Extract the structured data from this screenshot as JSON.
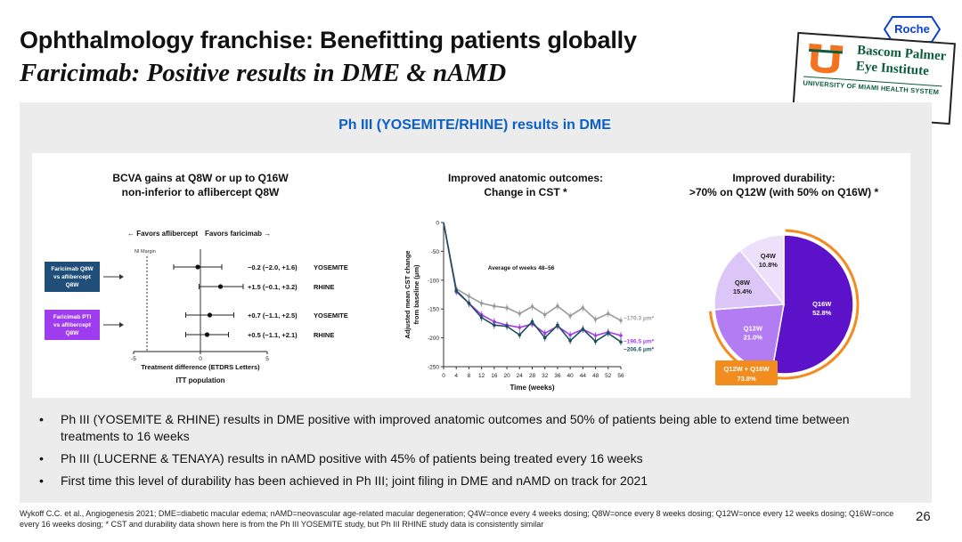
{
  "header": {
    "title": "Ophthalmology franchise: Benefitting patients globally",
    "subtitle": "Faricimab: Positive results in DME & nAMD"
  },
  "logos": {
    "roche": "Roche",
    "bascom_line1": "Bascom Palmer",
    "bascom_line2": "Eye Institute",
    "bascom_line3": "UNIVERSITY OF MIAMI HEALTH SYSTEM"
  },
  "panel": {
    "title": "Ph III (YOSEMITE/RHINE) results in DME"
  },
  "colors": {
    "navy": "#1f4e79",
    "purple": "#a03cf0",
    "dark_purple": "#5b12c8",
    "orange": "#f28c1e",
    "teal": "#1b4f5f",
    "blue": "#0b5fc7"
  },
  "chart_data": [
    {
      "type": "forest",
      "title_line1": "BCVA gains at Q8W or up to Q16W",
      "title_line2": "non-inferior to aflibercept Q8W",
      "direction_left": "Favors aflibercept",
      "direction_right": "Favors faricimab",
      "ni_margin_label": "NI Margin",
      "ni_margin": -4,
      "xlim": [
        -5,
        5
      ],
      "xticks": [
        -5,
        0,
        5
      ],
      "xlabel": "Treatment difference (ETDRS Letters)",
      "population": "ITT population",
      "groups": [
        {
          "label": "Faricimab Q8W vs aflibercept Q8W",
          "color": "#1f4e79"
        },
        {
          "label": "Faricimab PTI vs aflibercept Q8W",
          "color": "#a03cf0"
        }
      ],
      "rows": [
        {
          "est": -0.2,
          "lo": -2.0,
          "hi": 1.6,
          "text": "−0.2 (−2.0, +1.6)",
          "study": "YOSEMITE"
        },
        {
          "est": 1.5,
          "lo": -0.1,
          "hi": 3.2,
          "text": "+1.5 (−0.1, +3.2)",
          "study": "RHINE"
        },
        {
          "est": 0.7,
          "lo": -1.1,
          "hi": 2.5,
          "text": "+0.7 (−1.1, +2.5)",
          "study": "YOSEMITE"
        },
        {
          "est": 0.5,
          "lo": -1.1,
          "hi": 2.1,
          "text": "+0.5 (−1.1, +2.1)",
          "study": "RHINE"
        }
      ]
    },
    {
      "type": "line",
      "title_line1": "Improved anatomic outcomes:",
      "title_line2": "Change in CST *",
      "ylabel_line1": "Adjusted mean CST change",
      "ylabel_line2": "from baseline (μm)",
      "xlabel": "Time (weeks)",
      "annotation": "Average of weeks 48–56",
      "ylim": [
        -250,
        0
      ],
      "yticks": [
        0,
        -50,
        -100,
        -150,
        -200,
        -250
      ],
      "x": [
        0,
        4,
        8,
        12,
        16,
        20,
        24,
        28,
        32,
        36,
        40,
        44,
        48,
        52,
        56
      ],
      "series": [
        {
          "name": "aflibercept Q8W",
          "color": "#9a9a9a",
          "end_label": "−170.3 μm*",
          "values": [
            0,
            -115,
            -128,
            -140,
            -145,
            -148,
            -158,
            -146,
            -160,
            -145,
            -162,
            -148,
            -168,
            -158,
            -170
          ]
        },
        {
          "name": "faricimab PTI",
          "color": "#a03cf0",
          "end_label": "−196.5 μm*",
          "values": [
            0,
            -120,
            -140,
            -160,
            -172,
            -178,
            -182,
            -176,
            -192,
            -180,
            -195,
            -185,
            -196,
            -190,
            -196
          ]
        },
        {
          "name": "faricimab Q8W",
          "color": "#1b4f5f",
          "end_label": "−206.6 μm*",
          "values": [
            0,
            -118,
            -140,
            -165,
            -178,
            -180,
            -195,
            -172,
            -200,
            -178,
            -205,
            -185,
            -206,
            -192,
            -207
          ]
        }
      ]
    },
    {
      "type": "pie",
      "title_line1": "Improved durability:",
      "title_line2": ">70% on Q12W (with 50% on Q16W) *",
      "slices": [
        {
          "label": "Q16W",
          "value": 52.8,
          "value_text": "52.8%",
          "color": "#5b12c8"
        },
        {
          "label": "Q12W",
          "value": 21.0,
          "value_text": "21.0%",
          "color": "#b47cf2"
        },
        {
          "label": "Q8W",
          "value": 15.4,
          "value_text": "15.4%",
          "color": "#dcc6f8"
        },
        {
          "label": "Q4W",
          "value": 10.8,
          "value_text": "10.8%",
          "color": "#ece0fb"
        }
      ],
      "callout_line1": "Q12W + Q16W",
      "callout_line2": "73.8%",
      "callout_color": "#f28c1e"
    }
  ],
  "bullets": [
    "Ph III (YOSEMITE & RHINE) results in DME positive with improved anatomic outcomes and 50% of patients being able to extend time between treatments to 16 weeks",
    "Ph III (LUCERNE & TENAYA) results in nAMD positive with 45% of patients being treated every 16 weeks",
    "First time this level of durability has been achieved in Ph III; joint filing in DME and nAMD on track for 2021"
  ],
  "footer": "Wykoff C.C. et al., Angiogenesis 2021; DME=diabetic macular edema; nAMD=neovascular age-related macular degeneration; Q4W=once every 4 weeks dosing; Q8W=once every 8 weeks dosing; Q12W=once every 12 weeks dosing; Q16W=once every 16 weeks dosing; * CST and durability data shown here is from the Ph III YOSEMITE study, but Ph III RHINE study data is consistently similar",
  "page_number": "26"
}
